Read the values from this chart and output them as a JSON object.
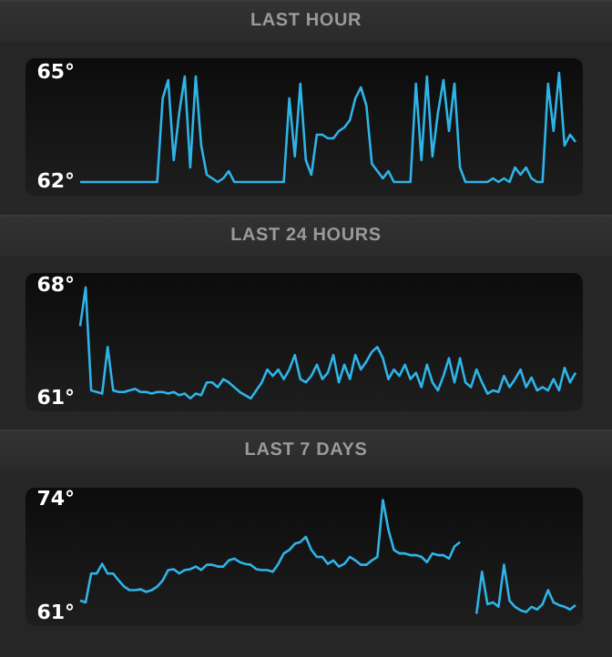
{
  "chart_data": [
    {
      "type": "line",
      "title": "LAST HOUR",
      "categories": [
        null,
        null,
        null,
        null,
        null,
        null,
        null,
        null,
        null,
        null,
        null,
        null,
        null,
        null,
        null,
        null,
        null,
        null,
        null,
        null,
        null,
        null,
        null,
        null,
        null,
        null,
        null,
        null,
        null,
        null,
        null,
        null,
        null,
        null,
        null,
        null,
        null,
        null,
        null,
        null,
        null,
        null,
        null,
        null,
        null,
        null,
        null,
        null,
        null,
        null,
        null,
        null,
        null,
        null,
        null,
        null,
        null,
        null,
        null,
        null,
        null,
        null,
        null,
        null,
        null,
        null,
        null,
        null,
        null,
        null,
        null,
        null,
        null,
        null,
        null,
        null,
        null,
        null,
        null,
        null,
        null,
        null,
        null,
        null,
        null,
        null,
        null,
        null,
        null,
        null,
        null
      ],
      "series": [
        {
          "color": "#2fb4e8",
          "values": [
            62.0,
            62.0,
            62.0,
            62.0,
            62.0,
            62.0,
            62.0,
            62.0,
            62.0,
            62.0,
            62.0,
            62.0,
            62.0,
            62.0,
            62.0,
            64.3,
            64.8,
            62.6,
            63.9,
            64.9,
            62.4,
            64.9,
            63.0,
            62.2,
            62.1,
            62.0,
            62.1,
            62.3,
            62.0,
            62.0,
            62.0,
            62.0,
            62.0,
            62.0,
            62.0,
            62.0,
            62.0,
            62.0,
            64.3,
            62.7,
            64.7,
            62.6,
            62.2,
            63.3,
            63.3,
            63.2,
            63.2,
            63.4,
            63.5,
            63.7,
            64.3,
            64.6,
            64.1,
            62.5,
            62.3,
            62.1,
            62.3,
            62.0,
            62.0,
            62.0,
            62.0,
            64.7,
            62.6,
            64.9,
            62.7,
            63.9,
            64.8,
            63.4,
            64.7,
            62.4,
            62.0,
            62.0,
            62.0,
            62.0,
            62.0,
            62.1,
            62.0,
            62.1,
            62.0,
            62.4,
            62.2,
            62.4,
            62.1,
            62.0,
            62.0,
            64.7,
            63.4,
            65.0,
            63.0,
            63.3,
            63.1
          ]
        }
      ],
      "ylim": [
        61.6,
        65.4
      ],
      "yticks": [
        {
          "value": 62,
          "label": "62°"
        },
        {
          "value": 65,
          "label": "65°"
        }
      ],
      "tick_labels": "y",
      "grid": false,
      "legend": false,
      "marker": "none",
      "line_style": "solid"
    },
    {
      "type": "line",
      "title": "LAST 24 HOURS",
      "categories": [
        null,
        null,
        null,
        null,
        null,
        null,
        null,
        null,
        null,
        null,
        null,
        null,
        null,
        null,
        null,
        null,
        null,
        null,
        null,
        null,
        null,
        null,
        null,
        null,
        null,
        null,
        null,
        null,
        null,
        null,
        null,
        null,
        null,
        null,
        null,
        null,
        null,
        null,
        null,
        null,
        null,
        null,
        null,
        null,
        null,
        null,
        null,
        null,
        null,
        null,
        null,
        null,
        null,
        null,
        null,
        null,
        null,
        null,
        null,
        null,
        null,
        null,
        null,
        null,
        null,
        null,
        null,
        null,
        null,
        null,
        null,
        null,
        null,
        null,
        null,
        null,
        null,
        null,
        null,
        null,
        null,
        null,
        null,
        null,
        null,
        null,
        null,
        null,
        null,
        null,
        null
      ],
      "series": [
        {
          "color": "#2fb4e8",
          "values": [
            65.5,
            67.9,
            61.5,
            61.4,
            61.3,
            64.2,
            61.5,
            61.4,
            61.4,
            61.5,
            61.6,
            61.4,
            61.4,
            61.3,
            61.4,
            61.4,
            61.3,
            61.4,
            61.2,
            61.3,
            61.0,
            61.3,
            61.2,
            62.0,
            62.0,
            61.7,
            62.2,
            62.0,
            61.7,
            61.4,
            61.2,
            61.0,
            61.5,
            62.0,
            62.8,
            62.4,
            62.8,
            62.2,
            62.8,
            63.7,
            62.2,
            62.0,
            62.4,
            63.1,
            62.2,
            62.6,
            63.7,
            62.0,
            63.1,
            62.2,
            63.7,
            62.8,
            63.3,
            63.9,
            64.2,
            63.5,
            62.2,
            62.8,
            62.4,
            63.1,
            62.2,
            62.6,
            61.7,
            63.1,
            62.0,
            61.5,
            62.4,
            63.5,
            62.0,
            63.5,
            62.0,
            61.7,
            62.8,
            62.0,
            61.3,
            61.5,
            61.4,
            62.4,
            61.7,
            62.2,
            62.8,
            61.7,
            62.3,
            61.5,
            61.7,
            61.5,
            62.2,
            61.5,
            62.9,
            62.0,
            62.6
          ]
        }
      ],
      "ylim": [
        60.2,
        68.8
      ],
      "yticks": [
        {
          "value": 61,
          "label": "61°"
        },
        {
          "value": 68,
          "label": "68°"
        }
      ],
      "tick_labels": "y",
      "grid": false,
      "legend": false,
      "marker": "none",
      "line_style": "solid"
    },
    {
      "type": "line",
      "title": "LAST 7 DAYS",
      "categories": [
        null,
        null,
        null,
        null,
        null,
        null,
        null,
        null,
        null,
        null,
        null,
        null,
        null,
        null,
        null,
        null,
        null,
        null,
        null,
        null,
        null,
        null,
        null,
        null,
        null,
        null,
        null,
        null,
        null,
        null,
        null,
        null,
        null,
        null,
        null,
        null,
        null,
        null,
        null,
        null,
        null,
        null,
        null,
        null,
        null,
        null,
        null,
        null,
        null,
        null,
        null,
        null,
        null,
        null,
        null,
        null,
        null,
        null,
        null,
        null,
        null,
        null,
        null,
        null,
        null,
        null,
        null,
        null,
        null,
        null,
        null,
        null,
        null,
        null,
        null,
        null,
        null,
        null,
        null,
        null,
        null,
        null,
        null,
        null,
        null,
        null,
        null,
        null,
        null,
        null,
        null
      ],
      "series": [
        {
          "color": "#2fb4e8",
          "values": [
            62.5,
            62.3,
            65.6,
            65.6,
            66.7,
            65.6,
            65.6,
            64.8,
            64.1,
            63.7,
            63.7,
            63.8,
            63.5,
            63.7,
            64.1,
            64.8,
            66.0,
            66.1,
            65.6,
            66.0,
            66.1,
            66.4,
            66.0,
            66.6,
            66.6,
            66.4,
            66.4,
            67.1,
            67.3,
            66.9,
            66.7,
            66.6,
            66.1,
            66.0,
            66.0,
            65.8,
            66.7,
            67.9,
            68.3,
            69.0,
            69.2,
            69.8,
            68.3,
            67.5,
            67.5,
            66.7,
            67.1,
            66.4,
            66.7,
            67.5,
            67.1,
            66.6,
            66.6,
            67.1,
            67.5,
            74.0,
            70.6,
            68.3,
            67.9,
            67.9,
            67.7,
            67.7,
            67.5,
            66.9,
            67.9,
            67.7,
            67.7,
            67.3,
            68.7,
            69.2,
            null,
            null,
            61.0,
            65.8,
            62.1,
            62.3,
            61.8,
            66.6,
            62.5,
            61.8,
            61.4,
            61.2,
            61.8,
            61.5,
            62.1,
            63.7,
            62.3,
            62.0,
            61.8,
            61.5,
            62.0
          ]
        }
      ],
      "ylim": [
        59.6,
        75.4
      ],
      "yticks": [
        {
          "value": 61,
          "label": "61°"
        },
        {
          "value": 74,
          "label": "74°"
        }
      ],
      "tick_labels": "y",
      "grid": false,
      "legend": false,
      "marker": "none",
      "line_style": "solid"
    }
  ]
}
